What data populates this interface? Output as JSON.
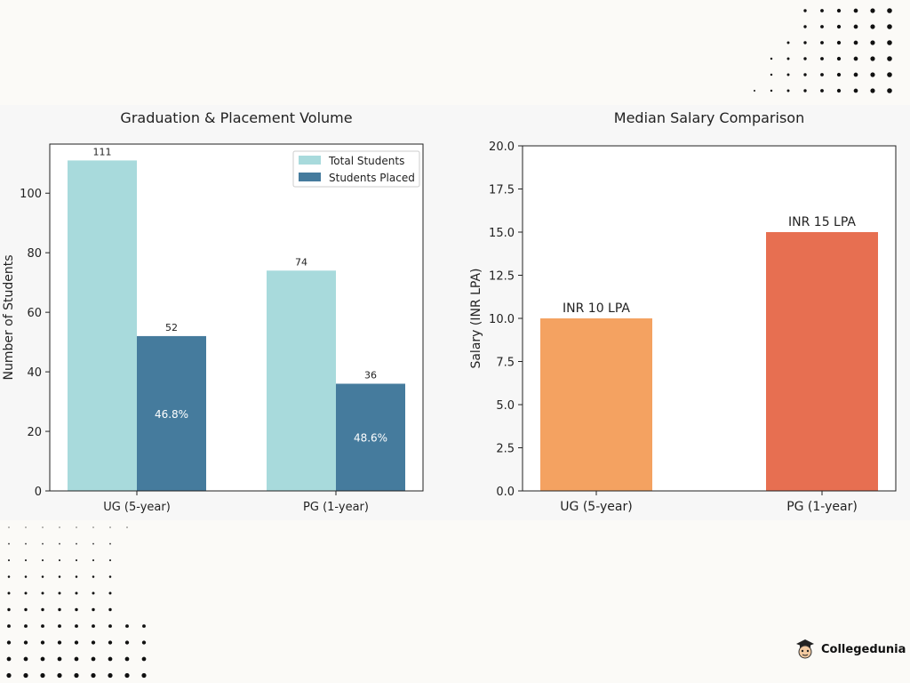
{
  "brand": {
    "name": "Collegedunia"
  },
  "colors": {
    "total": "#a8dadc",
    "placed": "#457b9d",
    "ug_salary": "#f4a261",
    "pg_salary": "#e76f51",
    "panel_bg": "#f7f7f7",
    "page_bg": "#fbfaf7"
  },
  "chart_data": [
    {
      "type": "bar",
      "title": "Graduation & Placement Volume",
      "xlabel": "",
      "ylabel": "Number of Students",
      "categories": [
        "UG (5-year)",
        "PG (1-year)"
      ],
      "series": [
        {
          "name": "Total Students",
          "values": [
            111,
            74
          ]
        },
        {
          "name": "Students Placed",
          "values": [
            52,
            36
          ]
        }
      ],
      "placement_rates": [
        "46.8%",
        "48.6%"
      ],
      "ylim": [
        0,
        116.5
      ],
      "yticks": [
        0,
        20,
        40,
        60,
        80,
        100
      ],
      "legend": "top-right",
      "grid": false
    },
    {
      "type": "bar",
      "title": "Median Salary Comparison",
      "xlabel": "",
      "ylabel": "Salary (INR LPA)",
      "categories": [
        "UG (5-year)",
        "PG (1-year)"
      ],
      "values": [
        10,
        15
      ],
      "data_labels": [
        "INR 10 LPA",
        "INR 15 LPA"
      ],
      "ylim": [
        0,
        20
      ],
      "yticks": [
        "0.0",
        "2.5",
        "5.0",
        "7.5",
        "10.0",
        "12.5",
        "15.0",
        "17.5",
        "20.0"
      ],
      "grid": false
    }
  ]
}
